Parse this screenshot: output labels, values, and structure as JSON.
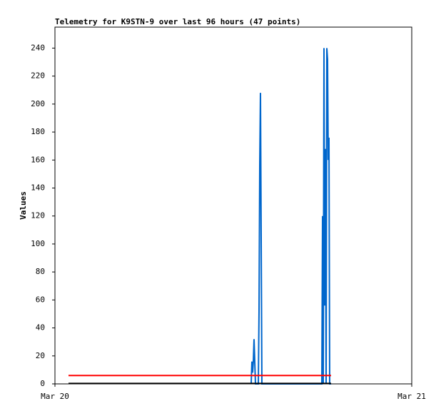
{
  "chart_data": {
    "type": "line",
    "title": "Telemetry for K9STN-9 over last 96 hours (47 points)",
    "y_label": "Values",
    "xlim": [
      0,
      1
    ],
    "xticks": [
      {
        "value": 0,
        "label": "Mar 20"
      },
      {
        "value": 1,
        "label": "Mar 21"
      }
    ],
    "ylim": [
      0,
      255
    ],
    "yticks": [
      0,
      20,
      40,
      60,
      80,
      100,
      120,
      140,
      160,
      180,
      200,
      220,
      240
    ],
    "series": [
      {
        "color": "#0066cc",
        "x": [
          0.55,
          0.552,
          0.554,
          0.556,
          0.558,
          0.56,
          0.562,
          0.57,
          0.572,
          0.574,
          0.576,
          0.578,
          0.58,
          0.748,
          0.75,
          0.752,
          0.754,
          0.756,
          0.758,
          0.76,
          0.762,
          0.764,
          0.766,
          0.768,
          0.77,
          0.774
        ],
        "values": [
          0,
          16,
          8,
          16,
          32,
          16,
          0,
          0,
          52,
          156,
          208,
          104,
          0,
          0,
          120,
          0,
          240,
          56,
          168,
          0,
          240,
          232,
          160,
          176,
          0,
          0
        ]
      },
      {
        "color": "#ff0000",
        "x": [
          0.038,
          0.602,
          0.774
        ],
        "values": [
          6,
          6,
          6
        ]
      },
      {
        "color": "#000000",
        "x": [
          0.038,
          0.774
        ],
        "values": [
          0.3,
          0.3
        ]
      }
    ]
  }
}
